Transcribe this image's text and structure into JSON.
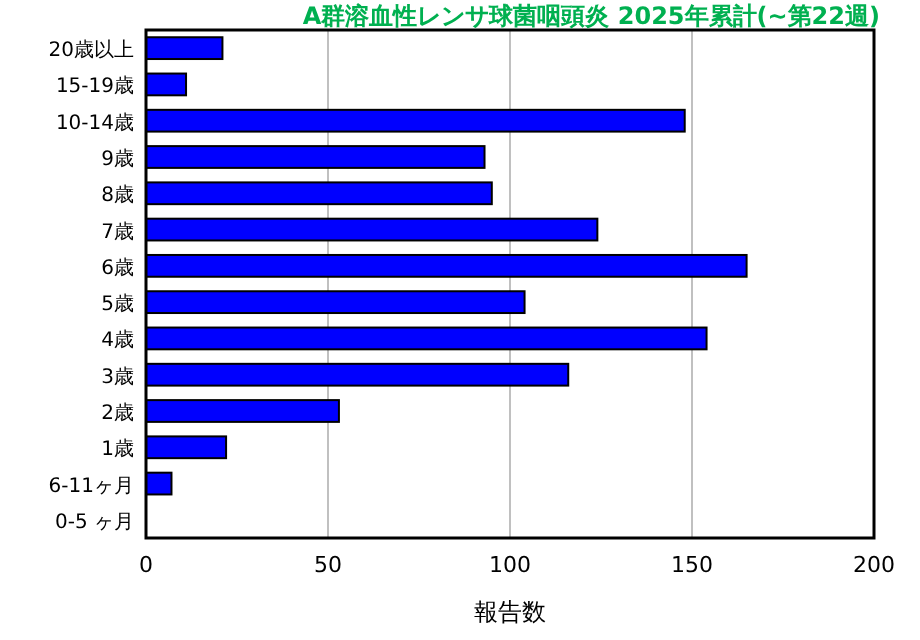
{
  "chart_data": {
    "type": "bar",
    "orientation": "horizontal",
    "title": "A群溶血性レンサ球菌咽頭炎 2025年累計(~第22週)",
    "xlabel": "報告数",
    "categories": [
      "20歳以上",
      "15-19歳",
      "10-14歳",
      "9歳",
      "8歳",
      "7歳",
      "6歳",
      "5歳",
      "4歳",
      "3歳",
      "2歳",
      "1歳",
      "6-11ヶ月",
      "0-5 ヶ月"
    ],
    "values": [
      21,
      11,
      148,
      93,
      95,
      124,
      165,
      104,
      154,
      116,
      53,
      22,
      7,
      0
    ],
    "color": "#0000ff",
    "xlim": [
      0,
      200
    ],
    "xticks": [
      0,
      50,
      100,
      150,
      200
    ],
    "grid": "x"
  }
}
